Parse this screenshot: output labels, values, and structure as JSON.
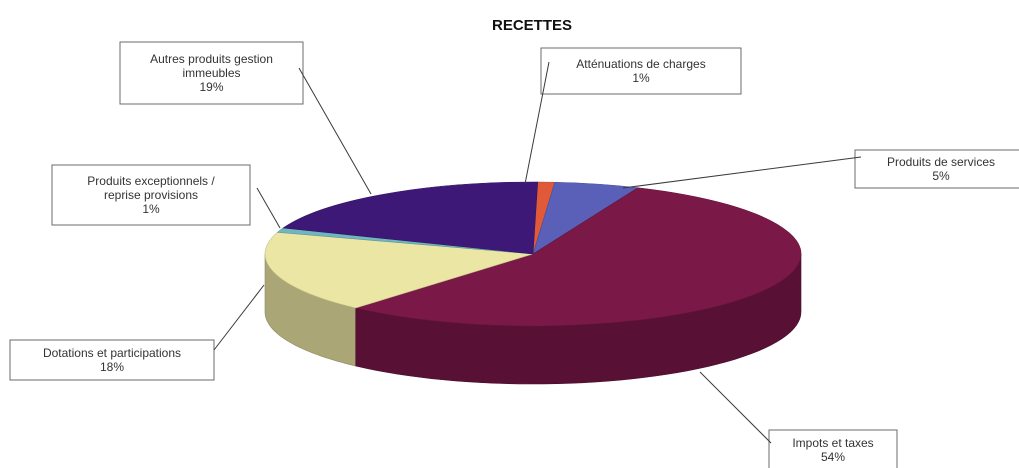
{
  "chart_data": {
    "type": "pie",
    "three_d": true,
    "title": "RECETTES",
    "legend": "none",
    "slices": [
      {
        "name_lines": [
          "Atténuations de charges"
        ],
        "value": 1,
        "label": "1%",
        "color": "#e05a3a"
      },
      {
        "name_lines": [
          "Produits de services"
        ],
        "value": 5,
        "label": "5%",
        "color": "#5a5fb8"
      },
      {
        "name_lines": [
          "Impots et taxes"
        ],
        "value": 54,
        "label": "54%",
        "color": "#7a1848"
      },
      {
        "name_lines": [
          "Dotations et participations"
        ],
        "value": 18,
        "label": "18%",
        "color": "#ece6a4"
      },
      {
        "name_lines": [
          "Produits exceptionnels /",
          "reprise provisions"
        ],
        "value": 1,
        "label": "1%",
        "color": "#6fb7bf"
      },
      {
        "name_lines": [
          "Autres produits gestion",
          "immeubles"
        ],
        "value": 19,
        "label": "19%",
        "color": "#3e1877"
      }
    ]
  }
}
